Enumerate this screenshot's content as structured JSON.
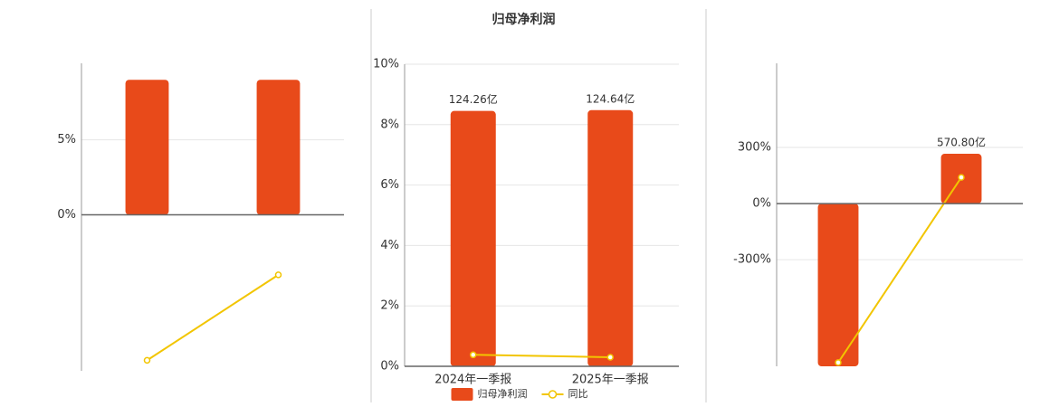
{
  "chart_data": [
    {
      "type": "bar",
      "categories": [
        null,
        null
      ],
      "series": [
        {
          "type": "bar",
          "color": "#e84a1a",
          "values": [
            9.0,
            9.0
          ]
        },
        {
          "type": "line",
          "color": "#f2c500",
          "values": [
            -9.7,
            -4.0
          ]
        }
      ],
      "ylim": [
        -10.4,
        10.1
      ],
      "yticks": [
        {
          "value": 0,
          "label": "0%"
        },
        {
          "value": 5,
          "label": "5%"
        }
      ],
      "grid": true
    },
    {
      "type": "bar",
      "title": "归母净利润",
      "categories": [
        "2024年一季报",
        "2025年一季报"
      ],
      "series": [
        {
          "name": "归母净利润",
          "type": "bar",
          "color": "#e84a1a",
          "values": [
            124.26,
            124.64
          ],
          "value_labels": [
            "124.26亿",
            "124.64亿"
          ],
          "axis": "y2"
        },
        {
          "name": "同比",
          "type": "line",
          "color": "#f2c500",
          "values": [
            0.38,
            0.3
          ]
        }
      ],
      "ylim": [
        0,
        10
      ],
      "yticks": [
        {
          "value": 0,
          "label": "0%"
        },
        {
          "value": 2,
          "label": "2%"
        },
        {
          "value": 4,
          "label": "4%"
        },
        {
          "value": 6,
          "label": "6%"
        },
        {
          "value": 8,
          "label": "8%"
        },
        {
          "value": 10,
          "label": "10%"
        }
      ],
      "y2lim": [
        0,
        147
      ],
      "grid": true,
      "legend": "bottom"
    },
    {
      "type": "bar",
      "categories": [
        null,
        null
      ],
      "series": [
        {
          "type": "bar",
          "color": "#e84a1a",
          "values": [
            -1868,
            570.8
          ],
          "value_labels": [
            null,
            "570.80亿"
          ],
          "axis": "y2"
        },
        {
          "type": "line",
          "color": "#f2c500",
          "values": [
            -850,
            140
          ]
        }
      ],
      "ylim": [
        -870,
        750
      ],
      "yticks": [
        {
          "value": 300,
          "label": "300%"
        },
        {
          "value": 0,
          "label": "0%"
        },
        {
          "value": -300,
          "label": "-300%"
        }
      ],
      "y2lim": [
        -1868,
        1609
      ],
      "grid": true
    }
  ]
}
